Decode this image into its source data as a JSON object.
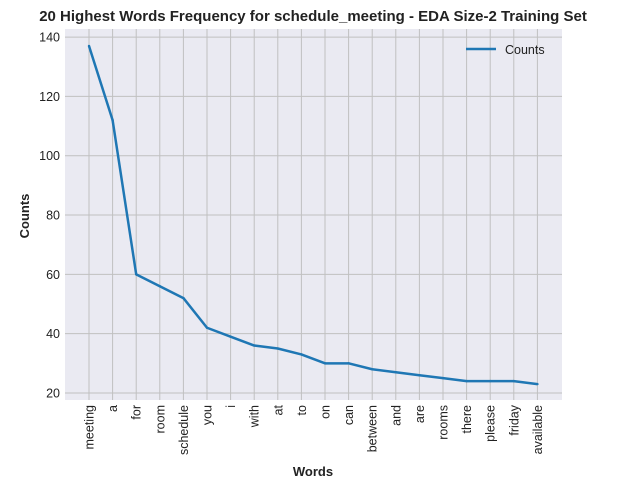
{
  "chart_data": {
    "type": "line",
    "title": "20 Highest Words Frequency for schedule_meeting - EDA Size-2 Training Set",
    "xlabel": "Words",
    "ylabel": "Counts",
    "categories": [
      "meeting",
      "a",
      "for",
      "room",
      "schedule",
      "you",
      "i",
      "with",
      "at",
      "to",
      "on",
      "can",
      "between",
      "and",
      "are",
      "rooms",
      "there",
      "please",
      "friday",
      "available"
    ],
    "series": [
      {
        "name": "Counts",
        "values": [
          137,
          112,
          60,
          56,
          52,
          42,
          39,
          36,
          35,
          33,
          30,
          30,
          28,
          27,
          26,
          25,
          24,
          24,
          24,
          23
        ]
      }
    ],
    "ylim": [
      18,
      143
    ],
    "yticks": [
      20,
      40,
      60,
      80,
      100,
      120,
      140
    ],
    "grid": true,
    "legend_position": "top-right",
    "colors": {
      "line": "#1f77b4",
      "plot_background": "#eaeaf2",
      "grid": "#c0c0c0"
    }
  }
}
